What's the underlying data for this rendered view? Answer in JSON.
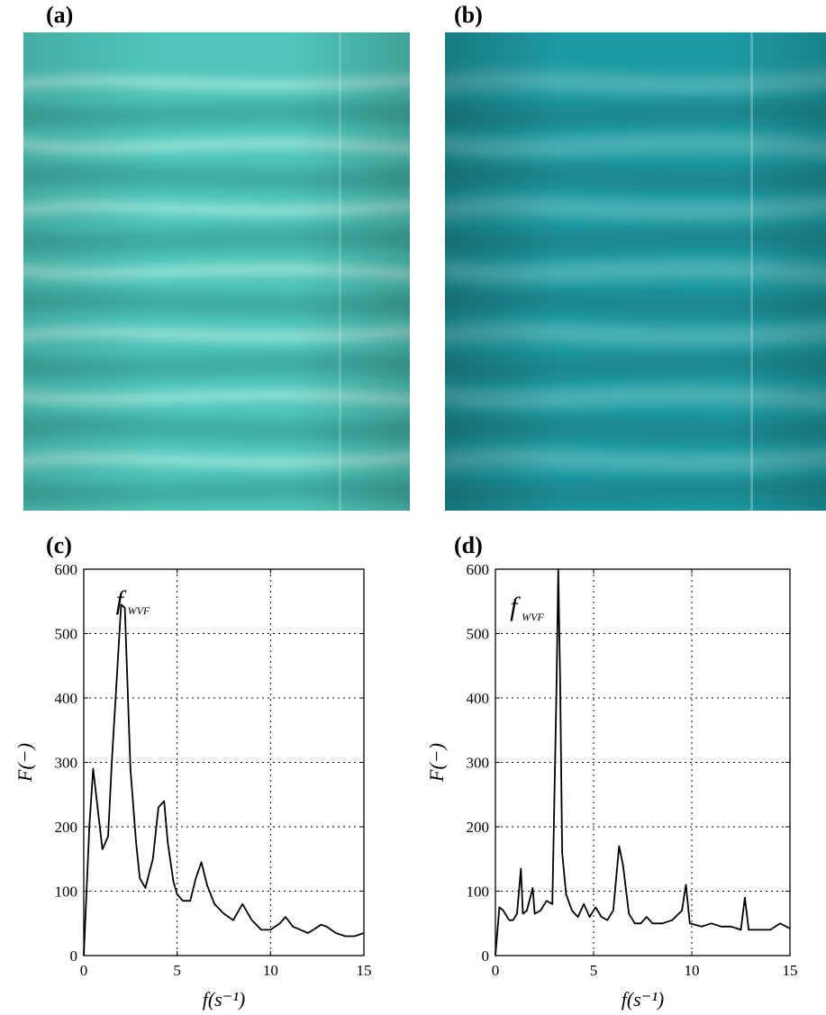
{
  "panels": {
    "a": "(a)",
    "b": "(b)",
    "c": "(c)",
    "d": "(d)"
  },
  "photos": {
    "a": {
      "base_color": "#4fc6b9",
      "band_color": "#c5f2ea",
      "shade_color": "#2f8f86",
      "bands": 7
    },
    "b": {
      "base_color": "#1d9aa3",
      "band_color": "#a7ded8",
      "shade_color": "#126b74",
      "bands": 7
    }
  },
  "chart_data": [
    {
      "id": "c",
      "type": "line",
      "xlabel": "f(s⁻¹)",
      "ylabel": "F(−)",
      "xlim": [
        0,
        15
      ],
      "ylim": [
        0,
        600
      ],
      "xticks": [
        0,
        5,
        10,
        15
      ],
      "yticks": [
        0,
        100,
        200,
        300,
        400,
        500,
        600
      ],
      "grid": true,
      "annotation": {
        "text": "f",
        "sub": "WVF",
        "x": 2.2,
        "y": 550
      },
      "series": [
        {
          "x": [
            0,
            0.3,
            0.5,
            0.7,
            1.0,
            1.3,
            1.5,
            2.0,
            2.2,
            2.5,
            2.8,
            3.0,
            3.3,
            3.7,
            4.0,
            4.3,
            4.5,
            4.8,
            5.0,
            5.3,
            5.7,
            6.0,
            6.3,
            6.6,
            7.0,
            7.5,
            8.0,
            8.5,
            9.0,
            9.5,
            10.0,
            10.5,
            10.8,
            11.2,
            11.6,
            12.0,
            12.3,
            12.7,
            13.0,
            13.5,
            14.0,
            14.5,
            15.0
          ],
          "y": [
            0,
            200,
            290,
            240,
            165,
            185,
            300,
            545,
            540,
            290,
            175,
            120,
            105,
            150,
            230,
            240,
            175,
            115,
            95,
            85,
            85,
            120,
            145,
            110,
            80,
            65,
            55,
            80,
            55,
            40,
            40,
            50,
            60,
            45,
            40,
            35,
            40,
            48,
            45,
            35,
            30,
            30,
            35
          ]
        }
      ]
    },
    {
      "id": "d",
      "type": "line",
      "xlabel": "f(s⁻¹)",
      "ylabel": "F(−)",
      "xlim": [
        0,
        15
      ],
      "ylim": [
        0,
        600
      ],
      "xticks": [
        0,
        5,
        10,
        15
      ],
      "yticks": [
        0,
        100,
        200,
        300,
        400,
        500,
        600
      ],
      "grid": true,
      "annotation": {
        "text": "f",
        "sub": "WVF",
        "x": 1.2,
        "y": 540
      },
      "series": [
        {
          "x": [
            0,
            0.2,
            0.4,
            0.7,
            0.9,
            1.1,
            1.3,
            1.4,
            1.6,
            1.9,
            2.0,
            2.3,
            2.6,
            2.9,
            3.1,
            3.2,
            3.3,
            3.4,
            3.6,
            3.9,
            4.2,
            4.5,
            4.8,
            5.1,
            5.4,
            5.7,
            6.0,
            6.3,
            6.5,
            6.8,
            7.1,
            7.4,
            7.7,
            8.0,
            8.5,
            9.0,
            9.5,
            9.7,
            9.9,
            10.5,
            11.0,
            11.5,
            12.0,
            12.5,
            12.7,
            12.9,
            13.5,
            14.0,
            14.5,
            15.0
          ],
          "y": [
            0,
            75,
            70,
            55,
            55,
            65,
            135,
            65,
            70,
            105,
            65,
            70,
            85,
            80,
            400,
            600,
            420,
            160,
            95,
            70,
            60,
            80,
            60,
            75,
            60,
            55,
            70,
            170,
            140,
            65,
            50,
            50,
            60,
            50,
            50,
            55,
            70,
            110,
            50,
            45,
            50,
            45,
            45,
            40,
            90,
            40,
            40,
            40,
            50,
            42
          ]
        }
      ]
    }
  ]
}
